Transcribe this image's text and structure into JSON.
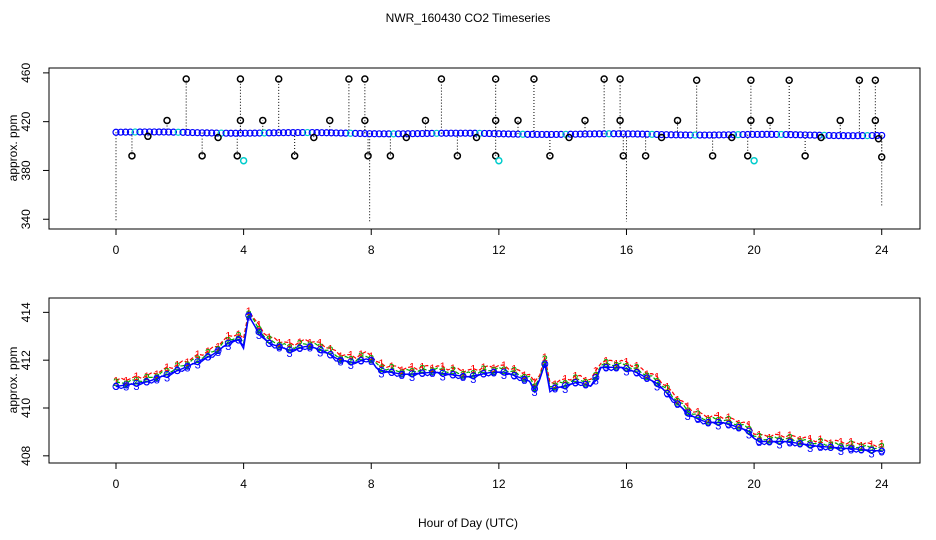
{
  "chart_data": [
    {
      "type": "scatter",
      "title": "NWR_160430  CO2 Timeseries",
      "xlabel": "",
      "ylabel": "approx. ppm",
      "xlim": [
        -2.1,
        25.2
      ],
      "ylim": [
        332,
        464
      ],
      "xticks": [
        "0",
        "4",
        "8",
        "12",
        "16",
        "20",
        "24"
      ],
      "yticks": [
        "340",
        "380",
        "420",
        "460"
      ],
      "baseline_start": 411.3,
      "baseline_end": 408.8,
      "mean_color": "#0000ff",
      "sample_color": "#00cccc",
      "outlier_color": "#000000",
      "flagged_samples": [
        {
          "x": 0.5,
          "y": 392
        },
        {
          "x": 1.0,
          "y": 408
        },
        {
          "x": 1.6,
          "y": 421
        },
        {
          "x": 2.2,
          "y": 455
        },
        {
          "x": 2.7,
          "y": 392
        },
        {
          "x": 3.2,
          "y": 407
        },
        {
          "x": 3.8,
          "y": 392
        },
        {
          "x": 3.9,
          "y": 421
        },
        {
          "x": 3.9,
          "y": 455
        },
        {
          "x": 4.6,
          "y": 421
        },
        {
          "x": 5.1,
          "y": 455
        },
        {
          "x": 5.6,
          "y": 392
        },
        {
          "x": 6.2,
          "y": 407
        },
        {
          "x": 6.7,
          "y": 421
        },
        {
          "x": 7.3,
          "y": 455
        },
        {
          "x": 7.8,
          "y": 455
        },
        {
          "x": 7.8,
          "y": 421
        },
        {
          "x": 7.9,
          "y": 392
        },
        {
          "x": 8.6,
          "y": 392
        },
        {
          "x": 9.1,
          "y": 407
        },
        {
          "x": 9.7,
          "y": 421
        },
        {
          "x": 10.2,
          "y": 455
        },
        {
          "x": 10.7,
          "y": 392
        },
        {
          "x": 11.3,
          "y": 407
        },
        {
          "x": 11.9,
          "y": 392
        },
        {
          "x": 11.9,
          "y": 421
        },
        {
          "x": 11.9,
          "y": 455
        },
        {
          "x": 12.6,
          "y": 421
        },
        {
          "x": 13.1,
          "y": 455
        },
        {
          "x": 13.6,
          "y": 392
        },
        {
          "x": 14.2,
          "y": 407
        },
        {
          "x": 14.7,
          "y": 421
        },
        {
          "x": 15.3,
          "y": 455
        },
        {
          "x": 15.8,
          "y": 455
        },
        {
          "x": 15.8,
          "y": 421
        },
        {
          "x": 15.9,
          "y": 392
        },
        {
          "x": 16.6,
          "y": 392
        },
        {
          "x": 17.1,
          "y": 407
        },
        {
          "x": 17.6,
          "y": 421
        },
        {
          "x": 18.2,
          "y": 454
        },
        {
          "x": 18.7,
          "y": 392
        },
        {
          "x": 19.3,
          "y": 407
        },
        {
          "x": 19.8,
          "y": 392
        },
        {
          "x": 19.9,
          "y": 421
        },
        {
          "x": 19.9,
          "y": 454
        },
        {
          "x": 20.5,
          "y": 421
        },
        {
          "x": 21.1,
          "y": 454
        },
        {
          "x": 21.6,
          "y": 392
        },
        {
          "x": 22.1,
          "y": 407
        },
        {
          "x": 22.7,
          "y": 421
        },
        {
          "x": 23.3,
          "y": 454
        },
        {
          "x": 23.8,
          "y": 454
        },
        {
          "x": 23.8,
          "y": 421
        },
        {
          "x": 23.9,
          "y": 406
        },
        {
          "x": 24.0,
          "y": 391
        }
      ],
      "cyan_points": [
        {
          "x": 4.0,
          "y": 388
        },
        {
          "x": 12.0,
          "y": 388
        },
        {
          "x": 20.0,
          "y": 388
        }
      ],
      "dips": [
        {
          "x": 0.0,
          "y": 338
        },
        {
          "x": 7.95,
          "y": 338
        },
        {
          "x": 16.0,
          "y": 338
        },
        {
          "x": 24.0,
          "y": 351
        }
      ]
    },
    {
      "type": "line",
      "title": "",
      "xlabel": "Hour of Day (UTC)",
      "ylabel": "approx. ppm",
      "xlim": [
        -2.1,
        25.2
      ],
      "ylim": [
        407.7,
        414.6
      ],
      "xticks": [
        "0",
        "4",
        "8",
        "12",
        "16",
        "20",
        "24"
      ],
      "yticks": [
        "408",
        "410",
        "412",
        "414"
      ],
      "series": [
        {
          "name": "1",
          "color": "#ff0000",
          "marker": "1",
          "offset": 0.25
        },
        {
          "name": "2",
          "color": "#00aa00",
          "marker": "2",
          "offset": 0.12
        },
        {
          "name": "3",
          "color": "#0000ff",
          "marker": "3",
          "offset": -0.05
        }
      ],
      "mean_color": "#0000ff",
      "anchors": [
        [
          0.0,
          410.9
        ],
        [
          1.0,
          411.1
        ],
        [
          2.0,
          411.6
        ],
        [
          3.0,
          412.2
        ],
        [
          3.5,
          412.7
        ],
        [
          3.8,
          412.9
        ],
        [
          4.0,
          412.6
        ],
        [
          4.15,
          413.9
        ],
        [
          4.4,
          413.3
        ],
        [
          4.8,
          412.7
        ],
        [
          5.5,
          412.4
        ],
        [
          6.0,
          412.6
        ],
        [
          6.5,
          412.4
        ],
        [
          7.0,
          412.0
        ],
        [
          7.5,
          411.9
        ],
        [
          7.95,
          412.1
        ],
        [
          8.2,
          411.6
        ],
        [
          9.0,
          411.4
        ],
        [
          10.0,
          411.5
        ],
        [
          11.0,
          411.3
        ],
        [
          11.8,
          411.5
        ],
        [
          12.2,
          411.5
        ],
        [
          13.0,
          411.1
        ],
        [
          13.2,
          410.6
        ],
        [
          13.4,
          412.1
        ],
        [
          13.6,
          410.8
        ],
        [
          14.0,
          410.9
        ],
        [
          14.5,
          411.1
        ],
        [
          14.9,
          410.9
        ],
        [
          15.2,
          411.7
        ],
        [
          15.9,
          411.7
        ],
        [
          16.3,
          411.5
        ],
        [
          17.0,
          411.0
        ],
        [
          17.5,
          410.3
        ],
        [
          18.0,
          409.7
        ],
        [
          18.5,
          409.4
        ],
        [
          19.0,
          409.4
        ],
        [
          19.5,
          409.2
        ],
        [
          19.9,
          409.0
        ],
        [
          20.05,
          408.6
        ],
        [
          21.0,
          408.6
        ],
        [
          22.0,
          408.4
        ],
        [
          23.0,
          408.3
        ],
        [
          24.0,
          408.2
        ]
      ]
    }
  ]
}
